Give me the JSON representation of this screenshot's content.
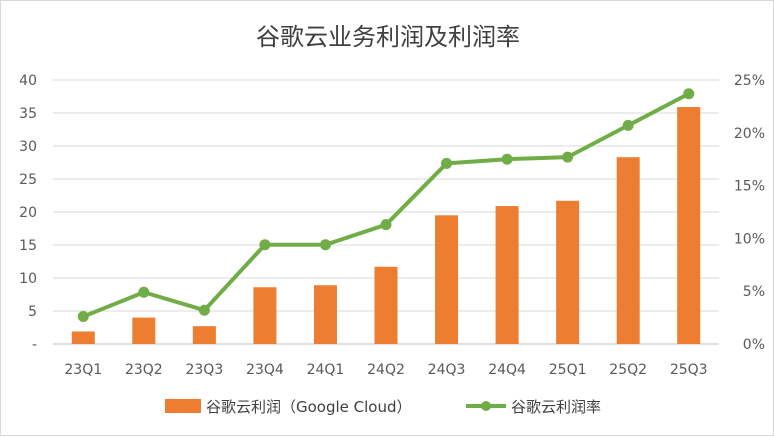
{
  "chart_data": {
    "type": "bar+line",
    "title": "谷歌云业务利润及利润率",
    "categories": [
      "23Q1",
      "23Q2",
      "23Q3",
      "23Q4",
      "24Q1",
      "24Q2",
      "24Q3",
      "24Q4",
      "25Q1",
      "25Q2",
      "25Q3"
    ],
    "series": [
      {
        "name": "谷歌云利润（Google Cloud）",
        "type": "bar",
        "axis": "left",
        "color": "#ed7d31",
        "values": [
          1.9,
          4.0,
          2.7,
          8.6,
          8.9,
          11.7,
          19.5,
          20.9,
          21.7,
          28.3,
          35.9
        ]
      },
      {
        "name": "谷歌云利润率",
        "type": "line",
        "axis": "right",
        "color": "#70ad47",
        "values": [
          0.026,
          0.049,
          0.032,
          0.094,
          0.094,
          0.113,
          0.171,
          0.175,
          0.177,
          0.207,
          0.237
        ]
      }
    ],
    "y_left": {
      "ylim": [
        0,
        40
      ],
      "ticks": [
        "-",
        "5",
        "10",
        "15",
        "20",
        "25",
        "30",
        "35",
        "40"
      ]
    },
    "y_right": {
      "ylim": [
        0,
        0.25
      ],
      "ticks": [
        "0%",
        "5%",
        "10%",
        "15%",
        "20%",
        "25%"
      ]
    },
    "grid": true,
    "legend_position": "bottom"
  }
}
